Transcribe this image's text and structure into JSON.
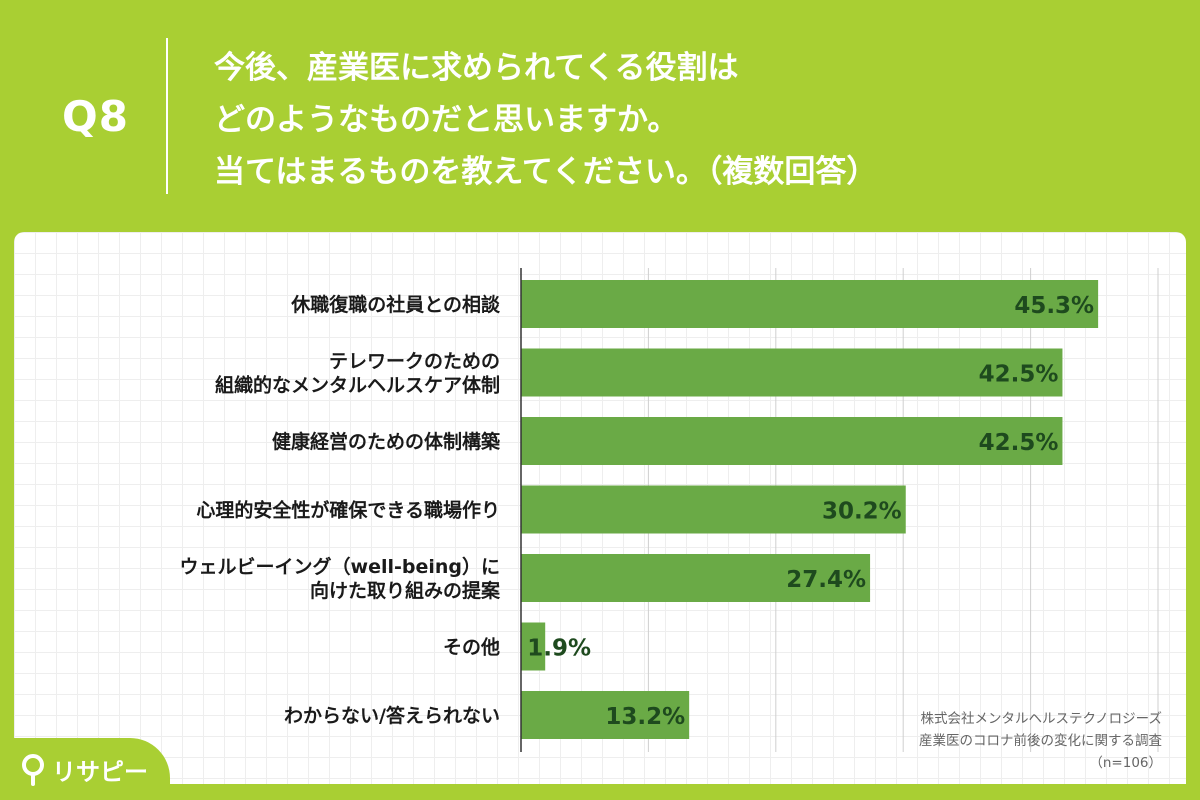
{
  "header": {
    "question_number": "Q8",
    "question_lines": [
      "今後、産業医に求められてくる役割は",
      "どのようなものだと思いますか。",
      "当てはまるものを教えてください。（複数回答）"
    ]
  },
  "colors": {
    "background": "#a9cf33",
    "bar": "#6aaa46",
    "value_text": "#1e4a1e"
  },
  "chart_data": {
    "type": "bar",
    "orientation": "horizontal",
    "categories": [
      [
        "休職復職の社員との相談"
      ],
      [
        "テレワークのための",
        "組織的なメンタルヘルスケア体制"
      ],
      [
        "健康経営のための体制構築"
      ],
      [
        "心理的安全性が確保できる職場作り"
      ],
      [
        "ウェルビーイング（well-being）に",
        "向けた取り組みの提案"
      ],
      [
        "その他"
      ],
      [
        "わからない/答えられない"
      ]
    ],
    "values": [
      45.3,
      42.5,
      42.5,
      30.2,
      27.4,
      1.9,
      13.2
    ],
    "value_labels": [
      "45.3%",
      "42.5%",
      "42.5%",
      "30.2%",
      "27.4%",
      "1.9%",
      "13.2%"
    ],
    "xlim": [
      0,
      50
    ],
    "grid": true
  },
  "source": {
    "company": "株式会社メンタルヘルステクノロジーズ",
    "survey": "産業医のコロナ前後の変化に関する調査",
    "sample": "（n=106）"
  },
  "brand": {
    "name": "リサピー",
    "icon": "pin-icon"
  }
}
